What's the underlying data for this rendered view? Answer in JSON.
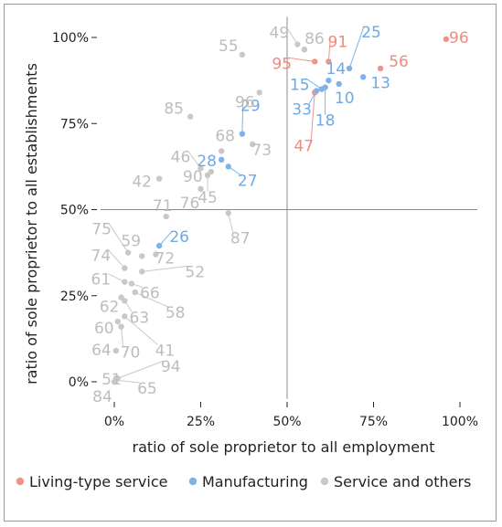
{
  "chart_data": {
    "type": "scatter",
    "xlabel": "ratio of sole proprietor to all employment",
    "ylabel": "ratio of sole proprietor to all establishments",
    "xlim": [
      -0.04,
      1.05
    ],
    "ylim": [
      -0.05,
      1.06
    ],
    "x_ticks": [
      0,
      0.25,
      0.5,
      0.75,
      1.0
    ],
    "x_tick_labels": [
      "0%",
      "25%",
      "50%",
      "75%",
      "100%"
    ],
    "y_ticks": [
      0,
      0.25,
      0.5,
      0.75,
      1.0
    ],
    "y_tick_labels": [
      "0%",
      "25%",
      "50%",
      "75%",
      "100%"
    ],
    "reference_lines": {
      "x": 0.5,
      "y": 0.5
    },
    "grid": false,
    "legend_position": "bottom",
    "series": [
      {
        "name": "Living-type service",
        "color": "#f0948a",
        "points": [
          {
            "label": "96",
            "x": 0.96,
            "y": 0.995
          },
          {
            "label": "91",
            "x": 0.62,
            "y": 0.93
          },
          {
            "label": "95",
            "x": 0.58,
            "y": 0.93
          },
          {
            "label": "56",
            "x": 0.77,
            "y": 0.91
          },
          {
            "label": "47",
            "x": 0.58,
            "y": 0.84
          }
        ]
      },
      {
        "name": "Manufacturing",
        "color": "#7fb2e8",
        "points": [
          {
            "label": "25",
            "x": 0.68,
            "y": 0.91
          },
          {
            "label": "14",
            "x": 0.62,
            "y": 0.875
          },
          {
            "label": "13",
            "x": 0.72,
            "y": 0.885
          },
          {
            "label": "10",
            "x": 0.65,
            "y": 0.865
          },
          {
            "label": "15",
            "x": 0.6,
            "y": 0.85
          },
          {
            "label": "18",
            "x": 0.61,
            "y": 0.855
          },
          {
            "label": "33",
            "x": 0.585,
            "y": 0.845
          },
          {
            "label": "29",
            "x": 0.37,
            "y": 0.72
          },
          {
            "label": "28",
            "x": 0.31,
            "y": 0.645
          },
          {
            "label": "27",
            "x": 0.33,
            "y": 0.625
          },
          {
            "label": "26",
            "x": 0.13,
            "y": 0.395
          }
        ]
      },
      {
        "name": "Service and others",
        "color": "#c8c8c8",
        "points": [
          {
            "label": "49",
            "x": 0.53,
            "y": 0.98
          },
          {
            "label": "86",
            "x": 0.55,
            "y": 0.965
          },
          {
            "label": "55",
            "x": 0.37,
            "y": 0.95
          },
          {
            "label": "96",
            "x": 0.42,
            "y": 0.84
          },
          {
            "label": "85",
            "x": 0.22,
            "y": 0.77
          },
          {
            "label": "68",
            "x": 0.31,
            "y": 0.67
          },
          {
            "label": "73",
            "x": 0.4,
            "y": 0.69
          },
          {
            "label": "46",
            "x": 0.25,
            "y": 0.62
          },
          {
            "label": "90",
            "x": 0.28,
            "y": 0.61
          },
          {
            "label": "42",
            "x": 0.13,
            "y": 0.59
          },
          {
            "label": "45",
            "x": 0.27,
            "y": 0.6
          },
          {
            "label": "76",
            "x": 0.25,
            "y": 0.56
          },
          {
            "label": "71",
            "x": 0.15,
            "y": 0.48
          },
          {
            "label": "87",
            "x": 0.33,
            "y": 0.49
          },
          {
            "label": "75",
            "x": 0.04,
            "y": 0.375
          },
          {
            "label": "59",
            "x": 0.08,
            "y": 0.365
          },
          {
            "label": "72",
            "x": 0.12,
            "y": 0.37
          },
          {
            "label": "74",
            "x": 0.03,
            "y": 0.33
          },
          {
            "label": "61",
            "x": 0.03,
            "y": 0.29
          },
          {
            "label": "52",
            "x": 0.08,
            "y": 0.32
          },
          {
            "label": "66",
            "x": 0.05,
            "y": 0.285
          },
          {
            "label": "62",
            "x": 0.02,
            "y": 0.245
          },
          {
            "label": "58",
            "x": 0.06,
            "y": 0.26
          },
          {
            "label": "63",
            "x": 0.03,
            "y": 0.235
          },
          {
            "label": "60",
            "x": 0.01,
            "y": 0.175
          },
          {
            "label": "70",
            "x": 0.02,
            "y": 0.16
          },
          {
            "label": "41",
            "x": 0.03,
            "y": 0.19
          },
          {
            "label": "64",
            "x": 0.005,
            "y": 0.09
          },
          {
            "label": "51",
            "x": 0.005,
            "y": 0.01
          },
          {
            "label": "94",
            "x": 0.01,
            "y": 0.01
          },
          {
            "label": "84",
            "x": 0.0,
            "y": 0.0
          },
          {
            "label": "65",
            "x": 0.005,
            "y": 0.005
          }
        ]
      }
    ]
  }
}
